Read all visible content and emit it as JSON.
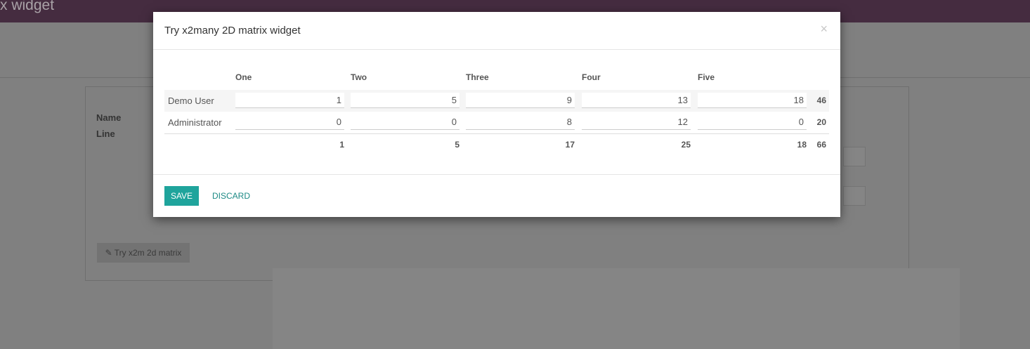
{
  "header": {
    "title": "x widget"
  },
  "form": {
    "name_label": "Name",
    "line_label": "Line",
    "try_button": "Try x2m 2d matrix"
  },
  "modal": {
    "title": "Try x2many 2D matrix widget",
    "close": "×",
    "columns": [
      "One",
      "Two",
      "Three",
      "Four",
      "Five"
    ],
    "rows": [
      {
        "label": "Demo User",
        "values": [
          "1",
          "5",
          "9",
          "13",
          "18"
        ],
        "total": "46"
      },
      {
        "label": "Administrator",
        "values": [
          "0",
          "0",
          "8",
          "12",
          "0"
        ],
        "total": "20"
      }
    ],
    "column_totals": [
      "1",
      "5",
      "17",
      "25",
      "18"
    ],
    "grand_total": "66",
    "save": "SAVE",
    "discard": "DISCARD"
  }
}
